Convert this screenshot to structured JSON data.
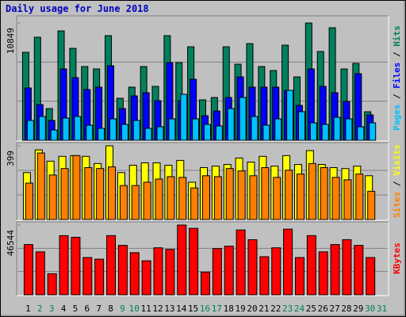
{
  "chart_data": [
    {
      "type": "bar",
      "title": "Daily usage for June 2018",
      "categories": [
        "1",
        "2",
        "3",
        "4",
        "5",
        "6",
        "7",
        "8",
        "9",
        "10",
        "11",
        "12",
        "13",
        "14",
        "15",
        "16",
        "17",
        "18",
        "19",
        "20",
        "21",
        "22",
        "23",
        "24",
        "25",
        "26",
        "27",
        "28",
        "29",
        "30",
        "31"
      ],
      "category_colors": [
        "#000000",
        "#00805c",
        "#00805c",
        "#000000",
        "#000000",
        "#000000",
        "#000000",
        "#000000",
        "#00805c",
        "#00805c",
        "#000000",
        "#000000",
        "#000000",
        "#000000",
        "#000000",
        "#00805c",
        "#00805c",
        "#000000",
        "#000000",
        "#000000",
        "#000000",
        "#000000",
        "#00805c",
        "#00805c",
        "#000000",
        "#000000",
        "#000000",
        "#000000",
        "#000000",
        "#00805c",
        "#00805c"
      ],
      "legend_separator": " / ",
      "ylim": [
        0,
        10849
      ],
      "yticks": [
        10849
      ],
      "series": [
        {
          "name": "Hits",
          "color": "#00805c",
          "values": [
            8136,
            9529,
            2932,
            10116,
            8503,
            6817,
            6597,
            9676,
            3885,
            4911,
            6817,
            4984,
            9676,
            7183,
            8649,
            3738,
            3958,
            8649,
            7037,
            8943,
            6817,
            6450,
            8796,
            5864,
            10849,
            8210,
            10409,
            6597,
            7110,
            2639,
            null
          ]
        },
        {
          "name": "Files",
          "color": "#0000ff",
          "values": [
            4838,
            3299,
            1833,
            6597,
            5791,
            4691,
            4911,
            6890,
            2932,
            4105,
            4398,
            3665,
            7183,
            3665,
            5644,
            2272,
            2712,
            3958,
            5864,
            4911,
            4911,
            4911,
            4618,
            3225,
            6597,
            4984,
            4398,
            3592,
            6157,
            2346,
            null
          ]
        },
        {
          "name": "Pages",
          "color": "#00c0ff",
          "values": [
            1833,
            2199,
            953,
            2052,
            2199,
            1393,
            1100,
            1979,
            1466,
            1833,
            1100,
            1246,
            1979,
            4251,
            1979,
            1466,
            1319,
            2932,
            3958,
            2199,
            1393,
            1979,
            4618,
            2639,
            1613,
            1466,
            2126,
            1979,
            1246,
            1613,
            null
          ]
        }
      ]
    },
    {
      "type": "bar",
      "ylim": [
        0,
        399
      ],
      "yticks": [
        399
      ],
      "series": [
        {
          "name": "Visits",
          "color": "#ffff00",
          "values": [
            254,
            377,
            316,
            342,
            346,
            342,
            303,
            399,
            254,
            294,
            307,
            307,
            294,
            320,
            202,
            281,
            289,
            298,
            333,
            311,
            342,
            289,
            346,
            298,
            373,
            298,
            281,
            276,
            289,
            237,
            null
          ]
        },
        {
          "name": "Sites",
          "color": "#ff8000",
          "values": [
            197,
            360,
            241,
            276,
            346,
            281,
            276,
            285,
            184,
            184,
            202,
            219,
            232,
            228,
            171,
            237,
            232,
            276,
            263,
            237,
            281,
            228,
            267,
            246,
            303,
            281,
            228,
            215,
            246,
            153,
            null
          ]
        }
      ]
    },
    {
      "type": "bar",
      "ylim": [
        0,
        46544
      ],
      "yticks": [
        46544
      ],
      "series": [
        {
          "name": "KBytes",
          "color": "#ff0000",
          "values": [
            33542,
            28673,
            14066,
            39493,
            38411,
            24886,
            23804,
            39493,
            33001,
            28132,
            22722,
            31378,
            30296,
            46544,
            44362,
            15148,
            30837,
            32460,
            43280,
            36788,
            25427,
            31378,
            43821,
            24886,
            39493,
            28673,
            33542,
            36788,
            33001,
            24886,
            null
          ]
        }
      ]
    }
  ]
}
